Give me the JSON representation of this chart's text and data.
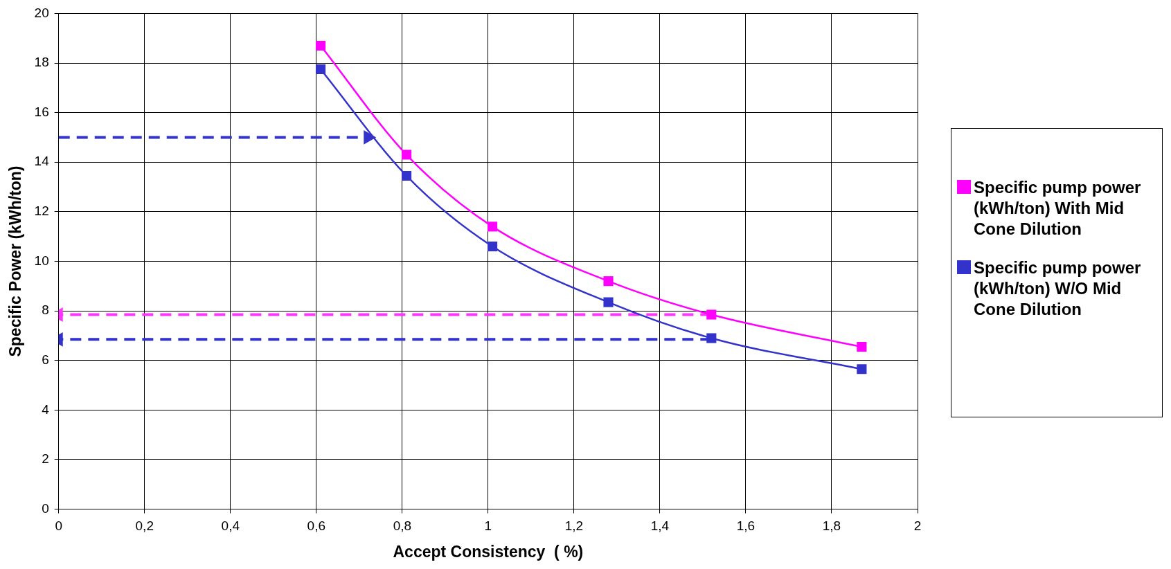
{
  "chart_data": {
    "type": "line",
    "xlabel": "Accept Consistency  ( %)",
    "ylabel": "Specific Power (kWh/ton)",
    "xlim": [
      0,
      2
    ],
    "xticks": [
      0,
      {
        "value": 0.2,
        "label": "0,2"
      },
      {
        "value": 0.4,
        "label": "0,4"
      },
      {
        "value": 0.6,
        "label": "0,6"
      },
      {
        "value": 0.8,
        "label": "0,8"
      },
      1,
      {
        "value": 1.2,
        "label": "1,2"
      },
      {
        "value": 1.4,
        "label": "1,4"
      },
      {
        "value": 1.6,
        "label": "1,6"
      },
      {
        "value": 1.8,
        "label": "1,8"
      },
      2
    ],
    "ylim": [
      0,
      20
    ],
    "yticks": [
      0,
      2,
      4,
      6,
      8,
      10,
      12,
      14,
      16,
      18,
      20
    ],
    "grid": true,
    "legend": "right",
    "series": [
      {
        "name": "Specific pump power (kWh/ton) With Mid Cone Dilution",
        "color": "#ff00ff",
        "x": [
          0.61,
          0.81,
          1.01,
          1.28,
          1.52,
          1.87
        ],
        "values": [
          18.7,
          14.3,
          11.4,
          9.2,
          7.85,
          6.55
        ],
        "marker": "square",
        "line_style": "solid"
      },
      {
        "name": "Specific pump power (kWh/ton) W/O Mid Cone Dilution",
        "color": "#3333cc",
        "x": [
          0.61,
          0.81,
          1.01,
          1.28,
          1.52,
          1.87
        ],
        "values": [
          17.75,
          13.45,
          10.6,
          8.35,
          6.9,
          5.65
        ],
        "marker": "square",
        "line_style": "solid"
      },
      {
        "type": "line",
        "color": "#3333cc",
        "x": [
          0,
          0.72
        ],
        "values": [
          15,
          15
        ],
        "marker": "triangle",
        "line_style": "dashed"
      },
      {
        "type": "line",
        "color": "#ff33ff",
        "x": [
          1.52,
          0
        ],
        "values": [
          7.85,
          7.85
        ],
        "marker": "triangle",
        "line_style": "dashed"
      },
      {
        "type": "line",
        "color": "#3333cc",
        "x": [
          1.52,
          0
        ],
        "values": [
          6.85,
          6.85
        ],
        "marker": "triangle",
        "line_style": "dashed"
      }
    ]
  }
}
